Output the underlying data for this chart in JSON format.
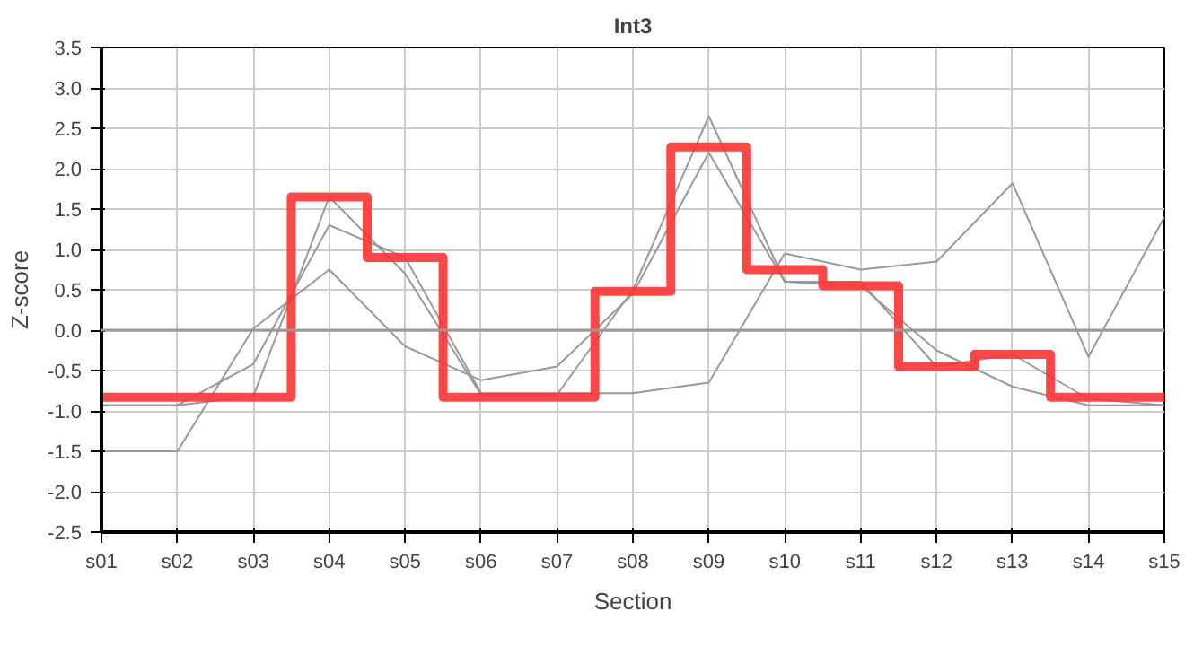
{
  "chart_data": {
    "type": "line",
    "title": "Int3",
    "xlabel": "Section",
    "ylabel": "Z-score",
    "categories": [
      "s01",
      "s02",
      "s03",
      "s04",
      "s05",
      "s06",
      "s07",
      "s08",
      "s09",
      "s10",
      "s11",
      "s12",
      "s13",
      "s14",
      "s15"
    ],
    "series": [
      {
        "color": "#999999",
        "values": [
          -1.5,
          -1.5,
          0.02,
          0.75,
          -0.2,
          -0.62,
          -0.45,
          0.45,
          2.2,
          0.6,
          0.6,
          -0.45,
          -0.3,
          -0.85,
          -0.93
        ]
      },
      {
        "color": "#999999",
        "values": [
          -0.93,
          -0.93,
          -0.42,
          1.3,
          0.9,
          -0.78,
          -0.78,
          -0.78,
          -0.65,
          0.95,
          0.75,
          0.85,
          1.82,
          -0.33,
          1.4
        ]
      },
      {
        "color": "#999999",
        "values": [
          -0.93,
          -0.93,
          -0.82,
          1.65,
          0.7,
          -0.8,
          -0.8,
          0.5,
          2.65,
          0.6,
          0.55,
          -0.25,
          -0.7,
          -0.93,
          -0.93
        ]
      },
      {
        "type": "step",
        "color": "#ff3333",
        "values": [
          -0.83,
          -0.83,
          -0.83,
          1.65,
          0.9,
          -0.83,
          -0.83,
          0.48,
          2.27,
          0.75,
          0.55,
          -0.45,
          -0.3,
          -0.83,
          -0.83
        ]
      }
    ],
    "ylim": [
      -2.5,
      3.5
    ],
    "yticks": [
      {
        "value": -2.5,
        "label": "-2.5"
      },
      {
        "value": -2,
        "label": "-2.0"
      },
      {
        "value": -1.5,
        "label": "-1.5"
      },
      {
        "value": -1,
        "label": "-1.0"
      },
      {
        "value": -0.5,
        "label": "-0.5"
      },
      {
        "value": 0,
        "label": "0.0"
      },
      {
        "value": 0.5,
        "label": "0.5"
      },
      {
        "value": 1,
        "label": "1.0"
      },
      {
        "value": 1.5,
        "label": "1.5"
      },
      {
        "value": 2,
        "label": "2.0"
      },
      {
        "value": 2.5,
        "label": "2.5"
      },
      {
        "value": 3,
        "label": "3.0"
      },
      {
        "value": 3.5,
        "label": "3.5"
      }
    ],
    "ref_lines": [
      {
        "axis": "y",
        "value": 0,
        "color": "#999999"
      }
    ],
    "grid": true
  }
}
